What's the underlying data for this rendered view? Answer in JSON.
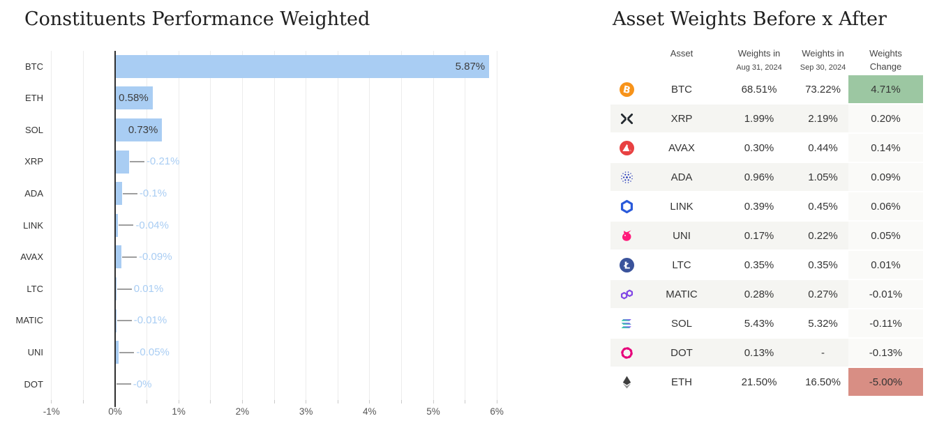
{
  "left_panel": {
    "title": "Constituents Performance Weighted"
  },
  "right_panel": {
    "title": "Asset Weights Before x After",
    "table": {
      "columns": [
        {
          "label": "Asset",
          "sub": "",
          "sub_small": false
        },
        {
          "label": "Weights in",
          "sub": "Aug 31, 2024",
          "sub_small": true
        },
        {
          "label": "Weights in",
          "sub": "Sep 30, 2024",
          "sub_small": true
        },
        {
          "label": "Weights",
          "sub": "Change",
          "sub_small": false
        }
      ],
      "rows": [
        {
          "icon": "btc-icon",
          "asset": "BTC",
          "weight_before": "68.51%",
          "weight_after": "73.22%",
          "change": "4.71%",
          "change_bg": "#9CC7A2",
          "striped": false
        },
        {
          "icon": "xrp-icon",
          "asset": "XRP",
          "weight_before": "1.99%",
          "weight_after": "2.19%",
          "change": "0.20%",
          "change_bg": "",
          "striped": true
        },
        {
          "icon": "avax-icon",
          "asset": "AVAX",
          "weight_before": "0.30%",
          "weight_after": "0.44%",
          "change": "0.14%",
          "change_bg": "",
          "striped": false
        },
        {
          "icon": "ada-icon",
          "asset": "ADA",
          "weight_before": "0.96%",
          "weight_after": "1.05%",
          "change": "0.09%",
          "change_bg": "",
          "striped": true
        },
        {
          "icon": "link-icon",
          "asset": "LINK",
          "weight_before": "0.39%",
          "weight_after": "0.45%",
          "change": "0.06%",
          "change_bg": "",
          "striped": false
        },
        {
          "icon": "uni-icon",
          "asset": "UNI",
          "weight_before": "0.17%",
          "weight_after": "0.22%",
          "change": "0.05%",
          "change_bg": "",
          "striped": true
        },
        {
          "icon": "ltc-icon",
          "asset": "LTC",
          "weight_before": "0.35%",
          "weight_after": "0.35%",
          "change": "0.01%",
          "change_bg": "",
          "striped": false
        },
        {
          "icon": "matic-icon",
          "asset": "MATIC",
          "weight_before": "0.28%",
          "weight_after": "0.27%",
          "change": "-0.01%",
          "change_bg": "",
          "striped": true
        },
        {
          "icon": "sol-icon",
          "asset": "SOL",
          "weight_before": "5.43%",
          "weight_after": "5.32%",
          "change": "-0.11%",
          "change_bg": "",
          "striped": false
        },
        {
          "icon": "dot-icon",
          "asset": "DOT",
          "weight_before": "0.13%",
          "weight_after": "-",
          "change": "-0.13%",
          "change_bg": "",
          "striped": true
        },
        {
          "icon": "eth-icon",
          "asset": "ETH",
          "weight_before": "21.50%",
          "weight_after": "16.50%",
          "change": "-5.00%",
          "change_bg": "#D88E84",
          "striped": false
        }
      ],
      "colors": {
        "stripe_bg": "#F5F5F2",
        "change_default_bg": "#FAFAF8",
        "positive_bg": "#9CC7A2",
        "negative_bg": "#D88E84",
        "text": "#343434"
      }
    }
  },
  "chart_data": {
    "type": "bar",
    "orientation": "horizontal",
    "title": "Constituents Performance Weighted",
    "categories": [
      "BTC",
      "ETH",
      "SOL",
      "XRP",
      "ADA",
      "LINK",
      "AVAX",
      "LTC",
      "MATIC",
      "UNI",
      "DOT"
    ],
    "values": [
      5.87,
      0.58,
      0.73,
      -0.21,
      -0.1,
      -0.04,
      -0.09,
      0.01,
      -0.01,
      -0.05,
      0
    ],
    "labels": [
      "5.87%",
      "0.58%",
      "0.73%",
      "-0.21%",
      "-0.1%",
      "-0.04%",
      "-0.09%",
      "0.01%",
      "-0.01%",
      "-0.05%",
      "-0%"
    ],
    "bars_drawn_as_absolute_values": true,
    "xlim": [
      -1,
      6.3
    ],
    "x_ticks": [
      {
        "v": -1,
        "label": "-1%"
      },
      {
        "v": 0,
        "label": "0%"
      },
      {
        "v": 1,
        "label": "1%"
      },
      {
        "v": 2,
        "label": "2%"
      },
      {
        "v": 3,
        "label": "3%"
      },
      {
        "v": 4,
        "label": "4%"
      },
      {
        "v": 5,
        "label": "5%"
      },
      {
        "v": 6,
        "label": "6%"
      }
    ],
    "grid": true,
    "grid_step": 0.5,
    "bar_color": "#A9CDF3",
    "label_inside_color": "#3D3D3D",
    "label_outside_color": "#A9CDF3",
    "leader_line_color": "#9E9E9E",
    "inside_label_threshold_pct": 0.5
  }
}
